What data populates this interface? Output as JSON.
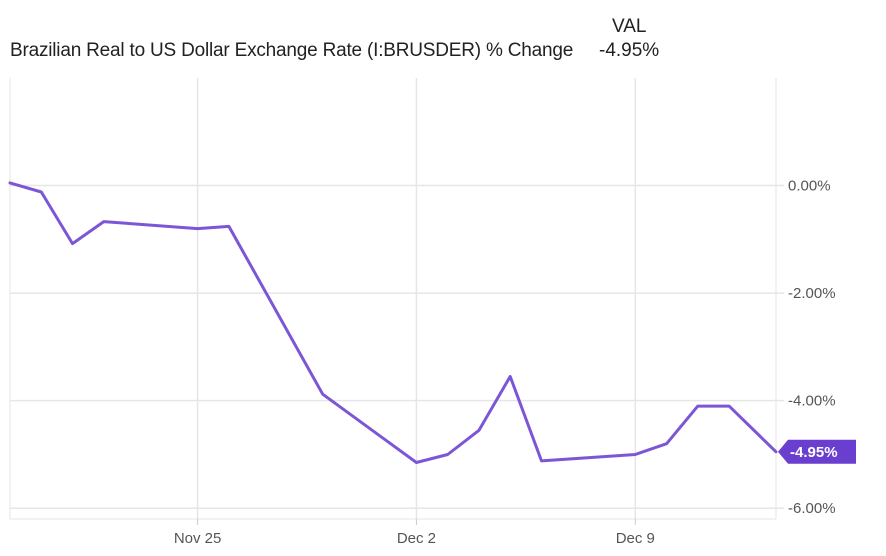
{
  "header": {
    "title": "Brazilian Real to US Dollar Exchange Rate (I:BRUSDER) % Change",
    "val_heading": "VAL",
    "val_value": "-4.95%"
  },
  "colors": {
    "line": "#7b56d6",
    "label_bg": "#6a3fd0",
    "grid": "#e6e6e6"
  },
  "chart_data": {
    "type": "line",
    "title": "Brazilian Real to US Dollar Exchange Rate (I:BRUSDER) % Change",
    "xlabel": "",
    "ylabel": "",
    "x_tick_labels": [
      "Nov 25",
      "Dec 2",
      "Dec 9"
    ],
    "y_tick_labels": [
      "0.00%",
      "-2.00%",
      "-4.00%",
      "-6.00%"
    ],
    "y_ticks": [
      0,
      -2,
      -4,
      -6
    ],
    "ylim": [
      -6.2,
      2.0
    ],
    "xlim": [
      0,
      24.5
    ],
    "grid": true,
    "x_tick_positions": [
      6,
      13,
      20
    ],
    "end_label": "-4.95%",
    "series": [
      {
        "name": "VAL",
        "x": [
          0,
          1,
          2,
          3,
          6,
          7,
          10,
          13,
          14,
          15,
          16,
          17,
          20,
          21,
          22,
          23,
          24.5
        ],
        "y": [
          0.05,
          -0.12,
          -1.08,
          -0.67,
          -0.8,
          -0.76,
          -3.88,
          -5.15,
          -5.0,
          -4.55,
          -3.55,
          -5.12,
          -5.0,
          -4.8,
          -4.1,
          -4.1,
          -4.95
        ]
      }
    ]
  }
}
